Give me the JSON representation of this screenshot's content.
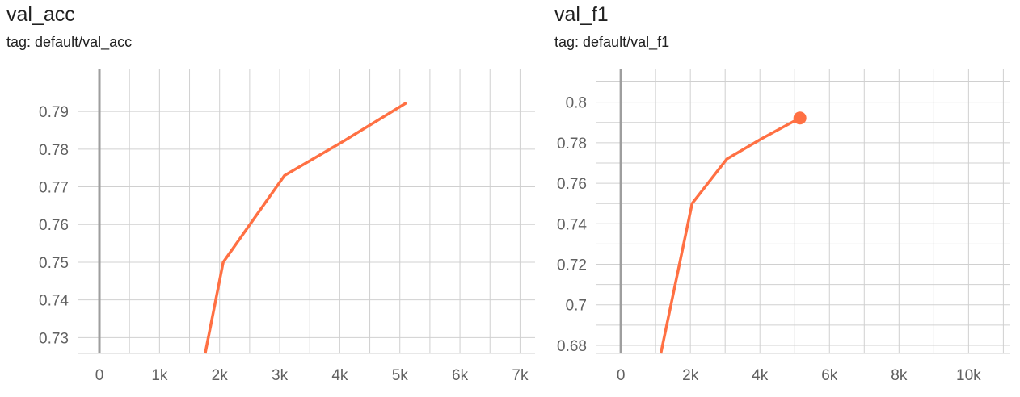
{
  "colors": {
    "series": "#ff7043",
    "grid": "#d0d0d0",
    "zero_axis": "#9e9e9e",
    "tick_text": "#616161",
    "title_text": "#212121"
  },
  "chart_data": [
    {
      "type": "line",
      "title": "val_acc",
      "subtitle": "tag: default/val_acc",
      "xlim": [
        -350,
        7250
      ],
      "ylim": [
        0.7258,
        0.8003
      ],
      "grid": true,
      "x_ticks": [
        0,
        1000,
        2000,
        3000,
        4000,
        5000,
        6000,
        7000
      ],
      "x_tick_labels": [
        "0",
        "1k",
        "2k",
        "3k",
        "4k",
        "5k",
        "6k",
        "7k"
      ],
      "x_minor_ticks": [
        -500,
        500,
        1500,
        2500,
        3500,
        4500,
        5500,
        6500
      ],
      "y_ticks": [
        0.73,
        0.74,
        0.75,
        0.76,
        0.77,
        0.78,
        0.79
      ],
      "y_tick_labels": [
        "0.73",
        "0.74",
        "0.75",
        "0.76",
        "0.77",
        "0.78",
        "0.79"
      ],
      "series": [
        {
          "x": [
            1760,
            2060,
            3080,
            4050,
            5110
          ],
          "y": [
            0.7258,
            0.75,
            0.773,
            0.782,
            0.7923
          ]
        }
      ]
    },
    {
      "type": "line",
      "title": "val_f1",
      "subtitle": "tag: default/val_f1",
      "xlim": [
        -700,
        11200
      ],
      "ylim": [
        0.676,
        0.8146
      ],
      "grid": true,
      "x_ticks": [
        0,
        2000,
        4000,
        6000,
        8000,
        10000
      ],
      "x_tick_labels": [
        "0",
        "2k",
        "4k",
        "6k",
        "8k",
        "10k"
      ],
      "x_minor_ticks": [
        1000,
        3000,
        5000,
        7000,
        9000,
        11000
      ],
      "y_ticks": [
        0.68,
        0.7,
        0.72,
        0.74,
        0.76,
        0.78,
        0.8
      ],
      "y_tick_labels": [
        "0.68",
        "0.7",
        "0.72",
        "0.74",
        "0.76",
        "0.78",
        "0.8"
      ],
      "y_minor_ticks": [
        0.69,
        0.71,
        0.73,
        0.75,
        0.77,
        0.79,
        0.81
      ],
      "series": [
        {
          "x": [
            1150,
            2050,
            3050,
            4050,
            5150
          ],
          "y": [
            0.676,
            0.75,
            0.772,
            0.782,
            0.7922
          ],
          "highlight_last_point": true
        }
      ]
    }
  ]
}
